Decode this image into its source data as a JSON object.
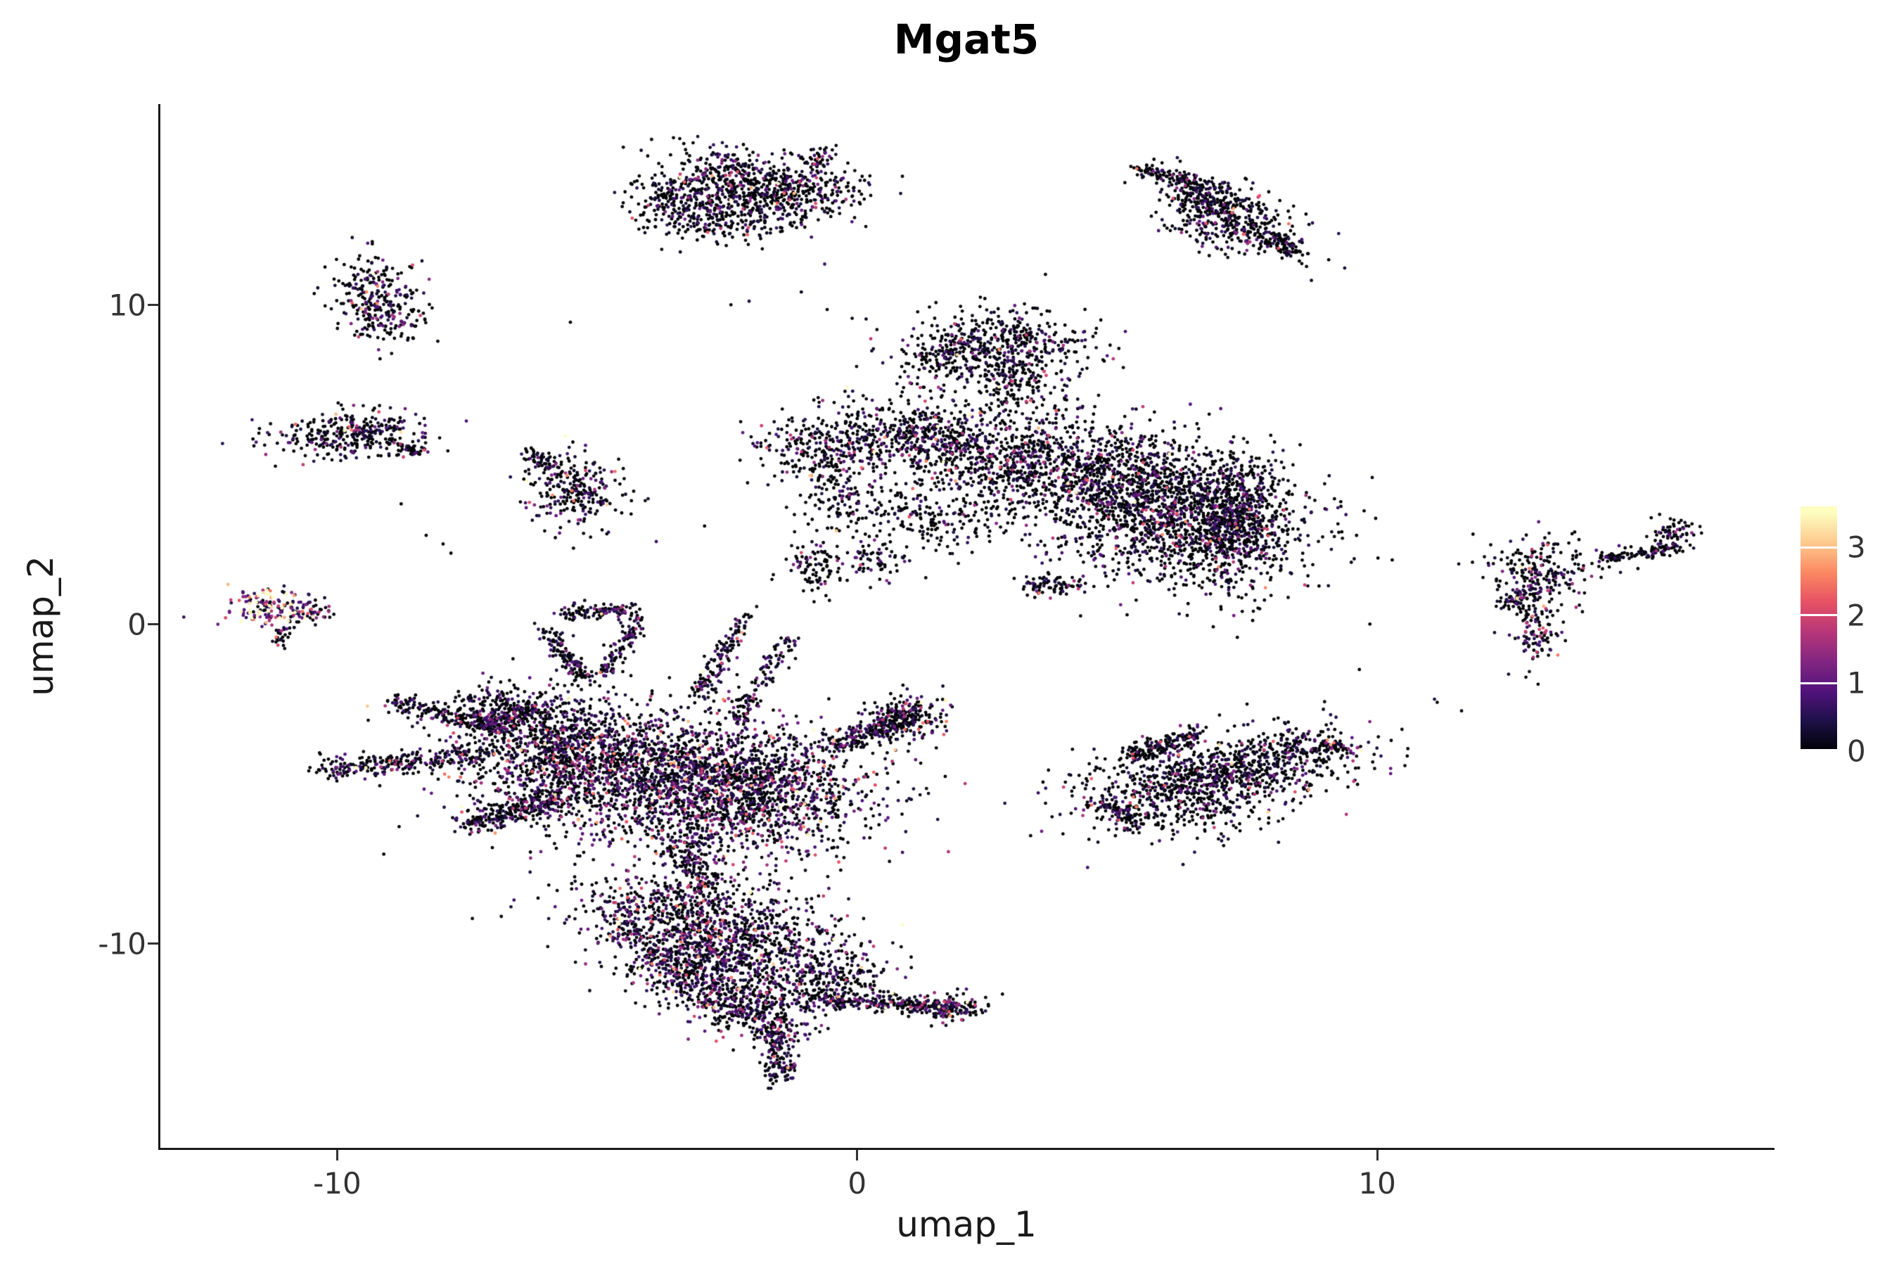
{
  "chart_data": {
    "type": "scatter",
    "title": "Mgat5",
    "xlabel": "umap_1",
    "ylabel": "umap_2",
    "x_domain": [
      -13.4,
      17.6
    ],
    "y_domain": [
      -16.4,
      16.3
    ],
    "grid": false,
    "legend_position": "right",
    "x_ticks": [
      {
        "v": -10,
        "label": "-10"
      },
      {
        "v": 0,
        "label": "0"
      },
      {
        "v": 10,
        "label": "10"
      }
    ],
    "y_ticks": [
      {
        "v": 10,
        "label": "10"
      },
      {
        "v": 0,
        "label": "0"
      },
      {
        "v": -10,
        "label": "-10"
      }
    ],
    "colormap": {
      "name": "magma",
      "vmax": 3.5,
      "stops": [
        {
          "t": 0.0,
          "c": "#000004"
        },
        {
          "t": 0.125,
          "c": "#1D1147"
        },
        {
          "t": 0.25,
          "c": "#51127C"
        },
        {
          "t": 0.375,
          "c": "#822681"
        },
        {
          "t": 0.5,
          "c": "#B63679"
        },
        {
          "t": 0.625,
          "c": "#E65164"
        },
        {
          "t": 0.75,
          "c": "#FB8861"
        },
        {
          "t": 0.875,
          "c": "#FEC98D"
        },
        {
          "t": 1.0,
          "c": "#FCFDBF"
        }
      ]
    },
    "legend": {
      "bar_max": 3.6,
      "ticks": [
        {
          "v": 3,
          "label": "3"
        },
        {
          "v": 2,
          "label": "2"
        },
        {
          "v": 1,
          "label": "1"
        },
        {
          "v": 0,
          "label": "0"
        }
      ]
    },
    "point_radius": 2.4,
    "seed": 42,
    "clusters": [
      {
        "t": "g",
        "x": -2.0,
        "y": 14.0,
        "sx": 1.0,
        "sy": 0.45,
        "rot": -15,
        "n": 450
      },
      {
        "t": "g",
        "x": -3.1,
        "y": 13.0,
        "sx": 0.7,
        "sy": 0.45,
        "rot": -25,
        "n": 350
      },
      {
        "t": "g",
        "x": -1.6,
        "y": 13.2,
        "sx": 0.6,
        "sy": 0.5,
        "rot": 0,
        "n": 250
      },
      {
        "t": "s",
        "x1": -0.9,
        "y1": 14.4,
        "x2": -0.5,
        "y2": 14.8,
        "w": 0.12,
        "n": 40
      },
      {
        "t": "g",
        "x": -9.15,
        "y": 10.1,
        "sx": 0.42,
        "sy": 0.65,
        "rot": 15,
        "n": 300,
        "p0": 0.5,
        "sc": 0.7
      },
      {
        "t": "s",
        "x1": 5.35,
        "y1": 14.3,
        "x2": 6.7,
        "y2": 13.75,
        "w": 0.1,
        "n": 110,
        "p0": 0.7,
        "sc": 0.5
      },
      {
        "t": "g",
        "x": 7.2,
        "y": 12.7,
        "sx": 0.75,
        "sy": 0.5,
        "rot": -35,
        "n": 380,
        "p0": 0.6,
        "sc": 0.55
      },
      {
        "t": "s",
        "x1": 7.9,
        "y1": 12.2,
        "x2": 8.45,
        "y2": 11.65,
        "w": 0.15,
        "n": 90,
        "p0": 0.65,
        "sc": 0.5
      },
      {
        "t": "g",
        "x": 6.7,
        "y": 13.3,
        "sx": 0.4,
        "sy": 0.3,
        "rot": -35,
        "n": 120,
        "p0": 0.65,
        "sc": 0.5
      },
      {
        "t": "g",
        "x": -9.8,
        "y": 5.95,
        "sx": 0.75,
        "sy": 0.38,
        "rot": 5,
        "n": 320,
        "p0": 0.55,
        "sc": 0.6
      },
      {
        "t": "s",
        "x1": -8.9,
        "y1": 5.6,
        "x2": -8.35,
        "y2": 5.35,
        "w": 0.12,
        "n": 50
      },
      {
        "t": "g",
        "x": -5.45,
        "y": 4.25,
        "sx": 0.45,
        "sy": 0.6,
        "rot": 15,
        "n": 260,
        "p0": 0.55,
        "sc": 0.65
      },
      {
        "t": "s",
        "x1": -5.9,
        "y1": 5.0,
        "x2": -6.3,
        "y2": 5.4,
        "w": 0.1,
        "n": 40
      },
      {
        "t": "g",
        "x": 2.8,
        "y": 8.8,
        "sx": 0.85,
        "sy": 0.55,
        "rot": -10,
        "n": 420
      },
      {
        "t": "g",
        "x": 1.7,
        "y": 8.3,
        "sx": 0.55,
        "sy": 0.35,
        "rot": 0,
        "n": 130,
        "p0": 0.65,
        "sc": 0.5
      },
      {
        "t": "g",
        "x": 3.0,
        "y": 7.5,
        "sx": 0.5,
        "sy": 0.5,
        "rot": 0,
        "n": 160
      },
      {
        "t": "g",
        "x": 0.9,
        "y": 5.9,
        "sx": 1.0,
        "sy": 0.65,
        "rot": 10,
        "n": 520,
        "p0": 0.55
      },
      {
        "t": "g",
        "x": -0.9,
        "y": 5.6,
        "sx": 0.55,
        "sy": 0.5,
        "rot": 0,
        "n": 150
      },
      {
        "t": "g",
        "x": -0.5,
        "y": 4.2,
        "sx": 0.4,
        "sy": 0.7,
        "rot": 0,
        "n": 120,
        "p0": 0.65,
        "sc": 0.5
      },
      {
        "t": "g",
        "x": 2.6,
        "y": 5.3,
        "sx": 0.9,
        "sy": 0.7,
        "rot": -20,
        "n": 450,
        "p0": 0.55
      },
      {
        "t": "g",
        "x": 4.8,
        "y": 4.6,
        "sx": 1.25,
        "sy": 0.85,
        "rot": -10,
        "n": 1100
      },
      {
        "t": "g",
        "x": 6.3,
        "y": 3.1,
        "sx": 1.2,
        "sy": 0.9,
        "rot": 0,
        "n": 1100
      },
      {
        "t": "g",
        "x": 7.35,
        "y": 3.3,
        "sx": 0.45,
        "sy": 1.1,
        "rot": 0,
        "n": 500
      },
      {
        "t": "g",
        "x": 1.4,
        "y": 3.4,
        "sx": 0.9,
        "sy": 0.6,
        "rot": 0,
        "n": 220,
        "p0": 0.65,
        "sc": 0.5
      },
      {
        "t": "g",
        "x": -0.8,
        "y": 1.8,
        "sx": 0.3,
        "sy": 0.4,
        "rot": 0,
        "n": 90,
        "p0": 0.65,
        "sc": 0.5
      },
      {
        "t": "g",
        "x": 0.3,
        "y": 2.0,
        "sx": 0.3,
        "sy": 0.3,
        "rot": 0,
        "n": 60,
        "p0": 0.65,
        "sc": 0.5
      },
      {
        "t": "s",
        "x1": 3.2,
        "y1": 1.4,
        "x2": 4.2,
        "y2": 1.1,
        "w": 0.15,
        "n": 80
      },
      {
        "t": "g",
        "x": -11.35,
        "y": 0.55,
        "sx": 0.42,
        "sy": 0.28,
        "rot": 0,
        "n": 130,
        "p0": 0.1,
        "sc": 1.6
      },
      {
        "t": "g",
        "x": -10.55,
        "y": 0.45,
        "sx": 0.3,
        "sy": 0.18,
        "rot": 0,
        "n": 60,
        "p0": 0.3,
        "sc": 1.0
      },
      {
        "t": "g",
        "x": -11.1,
        "y": -0.4,
        "sx": 0.12,
        "sy": 0.18,
        "rot": 0,
        "n": 25,
        "p0": 0.5,
        "sc": 0.8
      },
      {
        "t": "g",
        "x": -4.4,
        "y": -4.6,
        "sx": 1.5,
        "sy": 1.05,
        "rot": 0,
        "n": 1700,
        "p0": 0.45,
        "sc": 0.7
      },
      {
        "t": "g",
        "x": -2.0,
        "y": -5.3,
        "sx": 1.2,
        "sy": 1.0,
        "rot": 0,
        "n": 1300,
        "p0": 0.45,
        "sc": 0.7
      },
      {
        "t": "g",
        "x": -5.9,
        "y": -3.6,
        "sx": 0.9,
        "sy": 0.7,
        "rot": 20,
        "n": 550,
        "p0": 0.5,
        "sc": 0.65
      },
      {
        "t": "s",
        "x1": -10.3,
        "y1": -4.6,
        "x2": -7.3,
        "y2": -4.1,
        "w": 0.18,
        "n": 260,
        "p0": 0.55
      },
      {
        "t": "s",
        "x1": -9.0,
        "y1": -2.4,
        "x2": -7.0,
        "y2": -3.2,
        "w": 0.15,
        "n": 160,
        "p0": 0.55
      },
      {
        "t": "s",
        "x1": -7.6,
        "y1": -6.3,
        "x2": -5.6,
        "y2": -5.4,
        "w": 0.2,
        "n": 240,
        "p0": 0.5,
        "sc": 0.7
      },
      {
        "t": "s",
        "x1": -5.6,
        "y1": 0.35,
        "x2": -4.3,
        "y2": 0.45,
        "w": 0.12,
        "n": 110,
        "p0": 0.5
      },
      {
        "t": "s",
        "x1": -6.0,
        "y1": -0.2,
        "x2": -5.2,
        "y2": -1.8,
        "w": 0.12,
        "n": 130,
        "p0": 0.5
      },
      {
        "t": "s",
        "x1": -4.2,
        "y1": 0.2,
        "x2": -4.9,
        "y2": -1.6,
        "w": 0.12,
        "n": 110,
        "p0": 0.5
      },
      {
        "t": "s",
        "x1": -2.1,
        "y1": 0.3,
        "x2": -3.1,
        "y2": -2.3,
        "w": 0.12,
        "n": 140,
        "p0": 0.5
      },
      {
        "t": "s",
        "x1": -1.3,
        "y1": -0.4,
        "x2": -2.3,
        "y2": -3.0,
        "w": 0.12,
        "n": 120,
        "p0": 0.5
      },
      {
        "t": "s",
        "x1": -0.6,
        "y1": -3.9,
        "x2": 1.2,
        "y2": -2.8,
        "w": 0.18,
        "n": 200,
        "p0": 0.5,
        "sc": 0.7
      },
      {
        "t": "g",
        "x": 0.9,
        "y": -2.9,
        "sx": 0.45,
        "sy": 0.35,
        "rot": 30,
        "n": 200,
        "p0": 0.5,
        "sc": 0.7
      },
      {
        "t": "s",
        "x1": -3.3,
        "y1": -6.8,
        "x2": -3.0,
        "y2": -8.3,
        "w": 0.25,
        "n": 160,
        "p0": 0.5
      },
      {
        "t": "g",
        "x": -6.9,
        "y": -2.6,
        "sx": 0.5,
        "sy": 0.4,
        "rot": 0,
        "n": 140,
        "p0": 0.55
      },
      {
        "t": "s",
        "x1": -7.3,
        "y1": -3.3,
        "x2": -6.2,
        "y2": -2.6,
        "w": 0.2,
        "n": 120,
        "p0": 0.55
      },
      {
        "t": "g",
        "x": -3.3,
        "y": -9.0,
        "sx": 1.15,
        "sy": 0.6,
        "rot": -10,
        "n": 600,
        "p0": 0.5,
        "sc": 0.7
      },
      {
        "t": "g",
        "x": -2.4,
        "y": -10.4,
        "sx": 1.1,
        "sy": 0.75,
        "rot": 0,
        "n": 850,
        "p0": 0.45,
        "sc": 0.75
      },
      {
        "t": "s",
        "x1": -4.6,
        "y1": -9.3,
        "x2": -2.4,
        "y2": -12.3,
        "w": 0.25,
        "n": 280,
        "p0": 0.5
      },
      {
        "t": "g",
        "x": -1.9,
        "y": -12.0,
        "sx": 0.6,
        "sy": 0.6,
        "rot": 0,
        "n": 300,
        "p0": 0.5,
        "sc": 0.7
      },
      {
        "t": "s",
        "x1": -1.6,
        "y1": -12.6,
        "x2": -1.45,
        "y2": -14.2,
        "w": 0.17,
        "n": 170,
        "p0": 0.5
      },
      {
        "t": "s",
        "x1": -0.8,
        "y1": -11.7,
        "x2": 1.9,
        "y2": -12.05,
        "w": 0.15,
        "n": 280,
        "p0": 0.5
      },
      {
        "t": "g",
        "x": 1.85,
        "y": -12.0,
        "sx": 0.3,
        "sy": 0.22,
        "rot": 0,
        "n": 110,
        "p0": 0.45,
        "sc": 0.8
      },
      {
        "t": "g",
        "x": -0.4,
        "y": -11.1,
        "sx": 0.5,
        "sy": 0.45,
        "rot": 0,
        "n": 180,
        "p0": 0.55
      },
      {
        "t": "g",
        "x": 6.2,
        "y": -5.2,
        "sx": 1.05,
        "sy": 0.7,
        "rot": 10,
        "n": 700,
        "p0": 0.62,
        "sc": 0.55
      },
      {
        "t": "g",
        "x": 7.9,
        "y": -4.3,
        "sx": 0.95,
        "sy": 0.6,
        "rot": 15,
        "n": 520,
        "p0": 0.62,
        "sc": 0.55
      },
      {
        "t": "s",
        "x1": 5.2,
        "y1": -4.1,
        "x2": 6.6,
        "y2": -3.4,
        "w": 0.15,
        "n": 150,
        "p0": 0.62
      },
      {
        "t": "s",
        "x1": 8.9,
        "y1": -3.7,
        "x2": 9.5,
        "y2": -3.9,
        "w": 0.12,
        "n": 60,
        "p0": 0.62
      },
      {
        "t": "s",
        "x1": 4.7,
        "y1": -5.6,
        "x2": 5.4,
        "y2": -6.2,
        "w": 0.15,
        "n": 80,
        "p0": 0.62
      },
      {
        "t": "g",
        "x": 13.0,
        "y": 1.3,
        "sx": 0.35,
        "sy": 0.65,
        "rot": 0,
        "n": 190,
        "p0": 0.55
      },
      {
        "t": "g",
        "x": 13.3,
        "y": 1.9,
        "sx": 0.7,
        "sy": 0.5,
        "rot": 0,
        "n": 90,
        "p0": 0.65
      },
      {
        "t": "s",
        "x1": 14.3,
        "y1": 2.05,
        "x2": 15.9,
        "y2": 2.45,
        "w": 0.1,
        "n": 110,
        "p0": 0.7
      },
      {
        "t": "g",
        "x": 15.75,
        "y": 2.8,
        "sx": 0.22,
        "sy": 0.25,
        "rot": 0,
        "n": 60,
        "p0": 0.6
      },
      {
        "t": "g",
        "x": 13.05,
        "y": -0.45,
        "sx": 0.22,
        "sy": 0.45,
        "rot": 0,
        "n": 80,
        "p0": 0.5,
        "sc": 0.8
      },
      {
        "t": "s",
        "x1": 12.4,
        "y1": 0.6,
        "x2": 12.9,
        "y2": 1.0,
        "w": 0.1,
        "n": 40,
        "p0": 0.6
      },
      {
        "t": "g",
        "x": 2.0,
        "y": 10.3,
        "sx": 3.0,
        "sy": 0.7,
        "rot": 0,
        "n": 10,
        "p0": 0.6
      },
      {
        "t": "g",
        "x": -7.0,
        "y": 2.3,
        "sx": 1.6,
        "sy": 1.2,
        "rot": 0,
        "n": 8,
        "p0": 0.6
      },
      {
        "t": "g",
        "x": 10.6,
        "y": -1.6,
        "sx": 1.4,
        "sy": 1.0,
        "rot": 0,
        "n": 6,
        "p0": 0.6
      }
    ]
  }
}
